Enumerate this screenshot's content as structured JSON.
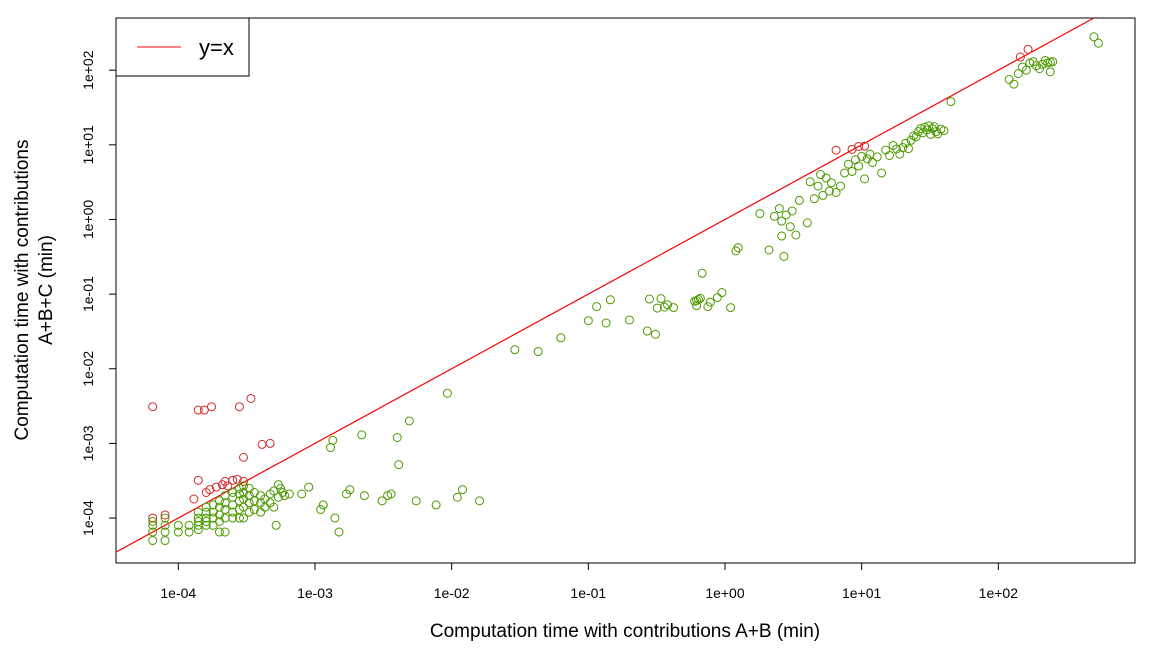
{
  "chart_data": {
    "type": "scatter",
    "x_scale": "log10",
    "y_scale": "log10",
    "xlabel": "Computation time with contributions A+B (min)",
    "ylabel_lines": [
      "Computation time with contributions",
      "A+B+C (min)"
    ],
    "xlim": [
      3.5e-05,
      1000
    ],
    "ylim": [
      2.5e-05,
      500
    ],
    "x_ticks": [
      {
        "value": 0.0001,
        "label": "1e-04"
      },
      {
        "value": 0.001,
        "label": "1e-03"
      },
      {
        "value": 0.01,
        "label": "1e-02"
      },
      {
        "value": 0.1,
        "label": "1e-01"
      },
      {
        "value": 1,
        "label": "1e+00"
      },
      {
        "value": 10,
        "label": "1e+01"
      },
      {
        "value": 100,
        "label": "1e+02"
      }
    ],
    "y_ticks": [
      {
        "value": 0.0001,
        "label": "1e-04"
      },
      {
        "value": 0.001,
        "label": "1e-03"
      },
      {
        "value": 0.01,
        "label": "1e-02"
      },
      {
        "value": 0.1,
        "label": "1e-01"
      },
      {
        "value": 1,
        "label": "1e+00"
      },
      {
        "value": 10,
        "label": "1e+01"
      },
      {
        "value": 100,
        "label": "1e+02"
      }
    ],
    "grid": false,
    "legend": {
      "position": "top-left",
      "entries": [
        {
          "label": "y=x",
          "color": "#ff0000"
        }
      ]
    },
    "reference_line": {
      "label": "y=x",
      "color": "#ff0000"
    },
    "colors": {
      "above_line": "#d62728",
      "below_line": "#4c9a00"
    },
    "series": [
      {
        "color": "#d62728",
        "points": [
          [
            6.5e-05,
            0.0031
          ],
          [
            0.00014,
            0.0028
          ],
          [
            0.000155,
            0.0028
          ],
          [
            0.000175,
            0.0031
          ],
          [
            0.00028,
            0.0031
          ],
          [
            0.00034,
            0.004
          ],
          [
            0.00041,
            0.00097
          ],
          [
            0.00047,
            0.001
          ],
          [
            0.0003,
            0.00065
          ],
          [
            0.00014,
            0.00032
          ],
          [
            0.00022,
            0.00031
          ],
          [
            0.00025,
            0.00032
          ],
          [
            0.00027,
            0.00033
          ],
          [
            0.0003,
            0.00031
          ],
          [
            0.00021,
            0.00028
          ],
          [
            0.00019,
            0.00026
          ],
          [
            0.00017,
            0.00024
          ],
          [
            0.00023,
            0.00027
          ],
          [
            6.5e-05,
            0.0001
          ],
          [
            8e-05,
            0.00011
          ],
          [
            0.00013,
            0.00018
          ],
          [
            0.00016,
            0.00022
          ],
          [
            6.5,
            8.5
          ],
          [
            8.5,
            8.7
          ],
          [
            9.5,
            9.5
          ],
          [
            10.5,
            9.6
          ],
          [
            165,
            190
          ],
          [
            145,
            150
          ]
        ]
      },
      {
        "color": "#4c9a00",
        "points": [
          [
            6.5e-05,
            5e-05
          ],
          [
            6.5e-05,
            6.5e-05
          ],
          [
            6.5e-05,
            8e-05
          ],
          [
            6.5e-05,
            9e-05
          ],
          [
            8e-05,
            5e-05
          ],
          [
            8e-05,
            6.5e-05
          ],
          [
            8e-05,
            8e-05
          ],
          [
            8e-05,
            0.0001
          ],
          [
            0.0001,
            6.5e-05
          ],
          [
            0.0001,
            8e-05
          ],
          [
            0.00012,
            6.5e-05
          ],
          [
            0.00012,
            8e-05
          ],
          [
            0.00014,
            7e-05
          ],
          [
            0.00014,
            8e-05
          ],
          [
            0.00014,
            9e-05
          ],
          [
            0.00014,
            0.0001
          ],
          [
            0.00014,
            0.00012
          ],
          [
            0.00016,
            8e-05
          ],
          [
            0.00016,
            9e-05
          ],
          [
            0.00016,
            0.0001
          ],
          [
            0.00016,
            0.00012
          ],
          [
            0.00016,
            0.00014
          ],
          [
            0.00018,
            8e-05
          ],
          [
            0.00018,
            0.0001
          ],
          [
            0.00018,
            0.00012
          ],
          [
            0.00018,
            0.00015
          ],
          [
            0.0002,
            6.5e-05
          ],
          [
            0.0002,
            9e-05
          ],
          [
            0.0002,
            0.00011
          ],
          [
            0.0002,
            0.00014
          ],
          [
            0.0002,
            0.00017
          ],
          [
            0.00022,
            6.5e-05
          ],
          [
            0.00022,
            0.0001
          ],
          [
            0.00022,
            0.00013
          ],
          [
            0.00022,
            0.00016
          ],
          [
            0.00022,
            0.0002
          ],
          [
            0.00025,
            0.0001
          ],
          [
            0.00025,
            0.00012
          ],
          [
            0.00025,
            0.00015
          ],
          [
            0.00025,
            0.00019
          ],
          [
            0.00025,
            0.00022
          ],
          [
            0.00028,
            0.0001
          ],
          [
            0.00028,
            0.00013
          ],
          [
            0.00028,
            0.00017
          ],
          [
            0.00028,
            0.00021
          ],
          [
            0.00028,
            0.00025
          ],
          [
            0.0003,
            0.0001
          ],
          [
            0.0003,
            0.00014
          ],
          [
            0.0003,
            0.00018
          ],
          [
            0.0003,
            0.00022
          ],
          [
            0.0003,
            0.00027
          ],
          [
            0.00033,
            0.00012
          ],
          [
            0.00033,
            0.00016
          ],
          [
            0.00033,
            0.0002
          ],
          [
            0.00033,
            0.00025
          ],
          [
            0.00036,
            0.00013
          ],
          [
            0.00036,
            0.00017
          ],
          [
            0.00036,
            0.00022
          ],
          [
            0.0004,
            0.00012
          ],
          [
            0.0004,
            0.00016
          ],
          [
            0.0004,
            0.0002
          ],
          [
            0.00043,
            0.00014
          ],
          [
            0.00043,
            0.00018
          ],
          [
            0.00047,
            0.00016
          ],
          [
            0.00047,
            0.00021
          ],
          [
            0.0005,
            0.00014
          ],
          [
            0.0005,
            0.00023
          ],
          [
            0.00052,
            8e-05
          ],
          [
            0.00054,
            0.00019
          ],
          [
            0.00054,
            0.00028
          ],
          [
            0.00056,
            0.00025
          ],
          [
            0.00058,
            0.00022
          ],
          [
            0.0006,
            0.0002
          ],
          [
            0.00065,
            0.00021
          ],
          [
            0.0008,
            0.00021
          ],
          [
            0.0009,
            0.00026
          ],
          [
            0.0011,
            0.00013
          ],
          [
            0.00115,
            0.00015
          ],
          [
            0.0013,
            0.00088
          ],
          [
            0.00135,
            0.0011
          ],
          [
            0.0014,
            0.0001
          ],
          [
            0.0015,
            6.5e-05
          ],
          [
            0.0017,
            0.00021
          ],
          [
            0.0018,
            0.00024
          ],
          [
            0.0022,
            0.0013
          ],
          [
            0.0023,
            0.0002
          ],
          [
            0.0031,
            0.00017
          ],
          [
            0.0034,
            0.0002
          ],
          [
            0.0036,
            0.00021
          ],
          [
            0.004,
            0.0012
          ],
          [
            0.0041,
            0.00052
          ],
          [
            0.0049,
            0.002
          ],
          [
            0.0055,
            0.00017
          ],
          [
            0.0077,
            0.00015
          ],
          [
            0.0093,
            0.0047
          ],
          [
            0.011,
            0.00019
          ],
          [
            0.012,
            0.00024
          ],
          [
            0.016,
            0.00017
          ],
          [
            0.029,
            0.018
          ],
          [
            0.043,
            0.017
          ],
          [
            0.063,
            0.026
          ],
          [
            0.1,
            0.044
          ],
          [
            0.115,
            0.068
          ],
          [
            0.135,
            0.041
          ],
          [
            0.145,
            0.084
          ],
          [
            0.2,
            0.045
          ],
          [
            0.27,
            0.032
          ],
          [
            0.28,
            0.086
          ],
          [
            0.31,
            0.029
          ],
          [
            0.32,
            0.065
          ],
          [
            0.34,
            0.087
          ],
          [
            0.36,
            0.067
          ],
          [
            0.38,
            0.072
          ],
          [
            0.42,
            0.066
          ],
          [
            0.6,
            0.08
          ],
          [
            0.62,
            0.082
          ],
          [
            0.64,
            0.085
          ],
          [
            0.66,
            0.088
          ],
          [
            0.68,
            0.19
          ],
          [
            0.62,
            0.07
          ],
          [
            0.75,
            0.068
          ],
          [
            0.78,
            0.078
          ],
          [
            0.88,
            0.09
          ],
          [
            0.95,
            0.105
          ],
          [
            1.1,
            0.066
          ],
          [
            1.2,
            0.38
          ],
          [
            1.25,
            0.42
          ],
          [
            1.8,
            1.2
          ],
          [
            2.1,
            0.39
          ],
          [
            2.3,
            1.1
          ],
          [
            2.5,
            1.4
          ],
          [
            2.6,
            0.95
          ],
          [
            2.6,
            0.6
          ],
          [
            2.7,
            0.32
          ],
          [
            2.8,
            1.15
          ],
          [
            3.0,
            0.8
          ],
          [
            3.1,
            1.3
          ],
          [
            3.3,
            0.62
          ],
          [
            3.5,
            1.8
          ],
          [
            4.0,
            0.9
          ],
          [
            4.2,
            3.2
          ],
          [
            4.5,
            1.9
          ],
          [
            4.8,
            2.8
          ],
          [
            5.0,
            4.0
          ],
          [
            5.2,
            2.1
          ],
          [
            5.5,
            3.6
          ],
          [
            5.8,
            2.4
          ],
          [
            6.0,
            3.1
          ],
          [
            6.5,
            2.3
          ],
          [
            7.0,
            2.8
          ],
          [
            7.5,
            4.2
          ],
          [
            8.0,
            5.5
          ],
          [
            8.5,
            4.4
          ],
          [
            9.0,
            6.3
          ],
          [
            9.5,
            5.2
          ],
          [
            10,
            7.0
          ],
          [
            10.5,
            3.5
          ],
          [
            11,
            6.5
          ],
          [
            11.5,
            7.5
          ],
          [
            12,
            5.8
          ],
          [
            13,
            6.9
          ],
          [
            14,
            4.2
          ],
          [
            15,
            8.5
          ],
          [
            16,
            7.2
          ],
          [
            17,
            9.8
          ],
          [
            18,
            8.8
          ],
          [
            19,
            7.5
          ],
          [
            20,
            9.2
          ],
          [
            21,
            10.5
          ],
          [
            22,
            8.9
          ],
          [
            23,
            11.5
          ],
          [
            24,
            13.2
          ],
          [
            25,
            12.8
          ],
          [
            26,
            15.0
          ],
          [
            27,
            16.5
          ],
          [
            28,
            14.5
          ],
          [
            29,
            17.2
          ],
          [
            30,
            15.8
          ],
          [
            31,
            18.0
          ],
          [
            32,
            13.8
          ],
          [
            33,
            16.5
          ],
          [
            34,
            17.5
          ],
          [
            35,
            15.0
          ],
          [
            36,
            14.0
          ],
          [
            38,
            16.2
          ],
          [
            40,
            15.5
          ],
          [
            45,
            38.0
          ],
          [
            120,
            75.0
          ],
          [
            130,
            65.0
          ],
          [
            140,
            90.0
          ],
          [
            150,
            110.0
          ],
          [
            160,
            100.0
          ],
          [
            170,
            125.0
          ],
          [
            180,
            130.0
          ],
          [
            190,
            115.0
          ],
          [
            200,
            105.0
          ],
          [
            210,
            120.0
          ],
          [
            220,
            135.0
          ],
          [
            230,
            125.0
          ],
          [
            240,
            128.0
          ],
          [
            250,
            130.0
          ],
          [
            240,
            95.0
          ],
          [
            500,
            280.0
          ],
          [
            540,
            230.0
          ]
        ]
      }
    ]
  }
}
